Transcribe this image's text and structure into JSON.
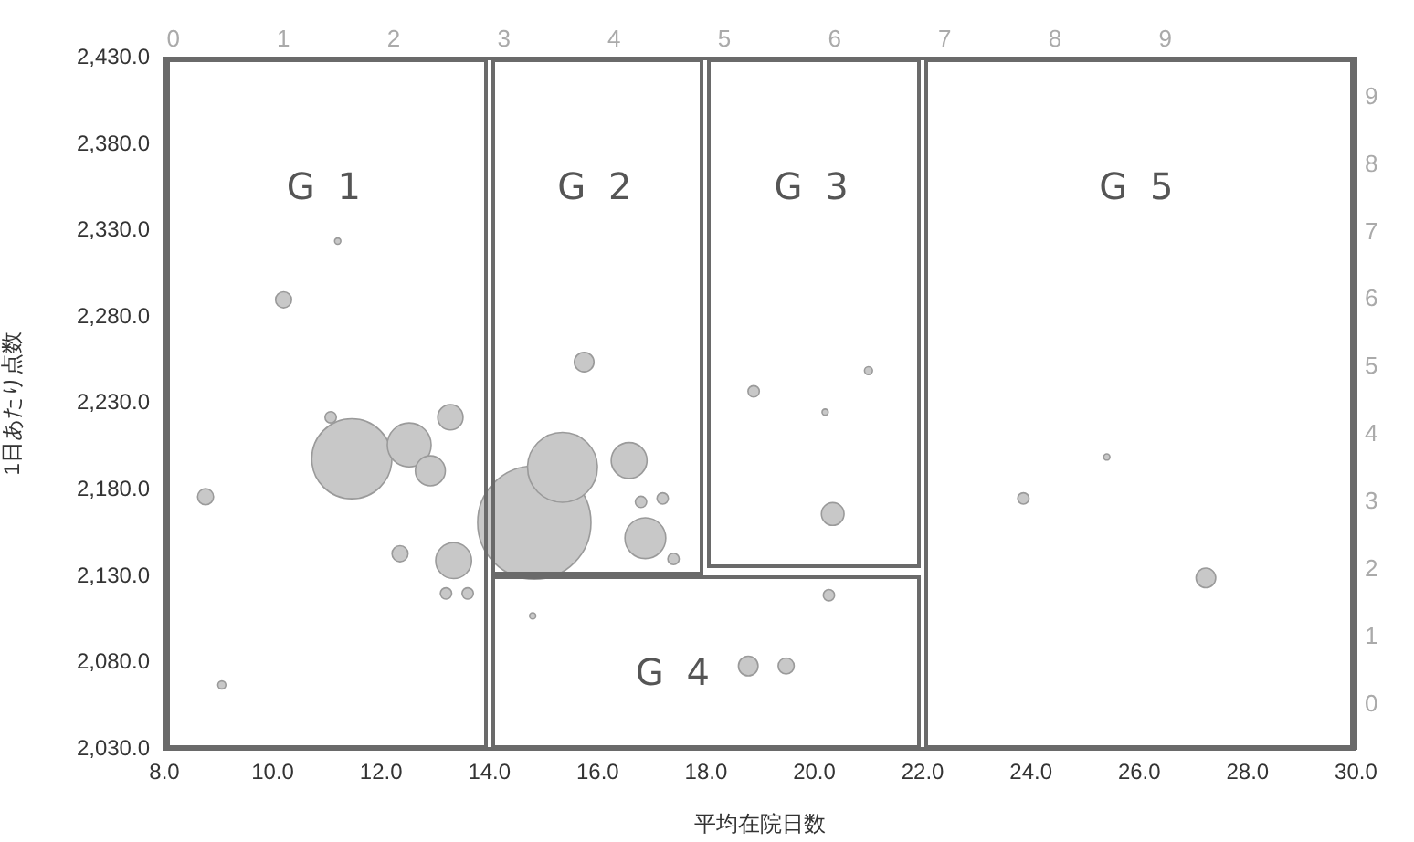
{
  "chart_data": {
    "type": "bubble",
    "xlabel": "平均在院日数",
    "ylabel": "1日あたり点数",
    "x": [
      14.83,
      11.46,
      15.35,
      12.52,
      12.91,
      13.28,
      13.34,
      16.58,
      16.88,
      20.34,
      15.75,
      27.23,
      18.78,
      19.48,
      8.76,
      10.2,
      9.06,
      11.2,
      11.07,
      12.35,
      13.2,
      13.6,
      17.4,
      16.8,
      17.2,
      18.88,
      20.27,
      20.2,
      21.0,
      14.8,
      23.86,
      25.4
    ],
    "values": [
      2161,
      2198,
      2193,
      2206,
      2191,
      2222,
      2139,
      2197,
      2152,
      2166,
      2254,
      2129,
      2078,
      2078,
      2176,
      2290,
      2067,
      2324,
      2222,
      2143,
      2120,
      2120,
      2140,
      2173,
      2175,
      2237,
      2119,
      2225,
      2249,
      2107,
      2175,
      2199
    ],
    "sizes": [
      1,
      0.5,
      0.38,
      0.15,
      0.07,
      0.05,
      0.1,
      0.1,
      0.13,
      0.04,
      0.03,
      0.03,
      0.03,
      0.02,
      0.02,
      0.02,
      0.005,
      0.003,
      0.01,
      0.02,
      0.01,
      0.01,
      0.01,
      0.01,
      0.01,
      0.01,
      0.01,
      0.003,
      0.005,
      0.003,
      0.01,
      0.003
    ],
    "color": "#c8c8c8",
    "xlim": [
      8,
      30
    ],
    "xticks": [
      {
        "value": 8,
        "label": "8.0"
      },
      {
        "value": 10,
        "label": "10.0"
      },
      {
        "value": 12,
        "label": "12.0"
      },
      {
        "value": 14,
        "label": "14.0"
      },
      {
        "value": 16,
        "label": "16.0"
      },
      {
        "value": 18,
        "label": "18.0"
      },
      {
        "value": 20,
        "label": "20.0"
      },
      {
        "value": 22,
        "label": "22.0"
      },
      {
        "value": 24,
        "label": "24.0"
      },
      {
        "value": 26,
        "label": "26.0"
      },
      {
        "value": 28,
        "label": "28.0"
      },
      {
        "value": 30,
        "label": "30.0"
      }
    ],
    "ylim": [
      2030,
      2430
    ],
    "yticks": [
      {
        "value": 2030,
        "label": "2,030.0"
      },
      {
        "value": 2080,
        "label": "2,080.0"
      },
      {
        "value": 2130,
        "label": "2,130.0"
      },
      {
        "value": 2180,
        "label": "2,180.0"
      },
      {
        "value": 2230,
        "label": "2,230.0"
      },
      {
        "value": 2280,
        "label": "2,280.0"
      },
      {
        "value": 2330,
        "label": "2,330.0"
      },
      {
        "value": 2380,
        "label": "2,380.0"
      },
      {
        "value": 2430,
        "label": "2,430.0"
      }
    ],
    "x2lim": [
      -0.08,
      10.73
    ],
    "x2ticks": [
      0,
      1,
      2,
      3,
      4,
      5,
      6,
      7,
      8,
      9
    ],
    "y2lim": [
      -0.65,
      9.58
    ],
    "y2ticks": [
      0,
      1,
      2,
      3,
      4,
      5,
      6,
      7,
      8,
      9
    ],
    "annotations": [
      "G 1",
      "G 2",
      "G 3",
      "G 4",
      "G 5"
    ],
    "grid": false,
    "legend": false
  }
}
